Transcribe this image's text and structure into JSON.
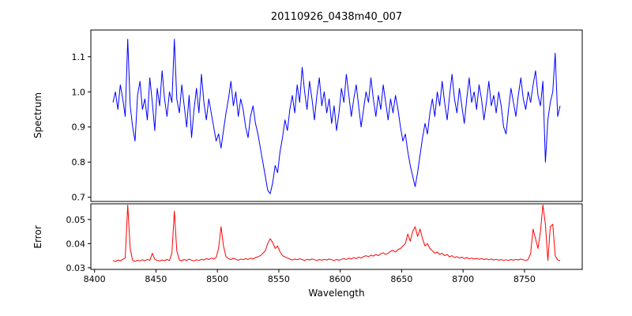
{
  "title": "20110926_0438m40_007",
  "xlabel": "Wavelength",
  "chart_data": [
    {
      "name": "spectrum",
      "type": "line",
      "ylabel": "Spectrum",
      "color": "#0000ff",
      "xlim": [
        8397,
        8797
      ],
      "ylim": [
        0.688,
        1.176
      ],
      "ytick_values": [
        0.7,
        0.8,
        0.9,
        1.0,
        1.1
      ],
      "ytick_labels": [
        "0.7",
        "0.8",
        "0.9",
        "1.0",
        "1.1"
      ],
      "x_start": 8415,
      "x_step": 2,
      "y": [
        0.97,
        1.0,
        0.95,
        1.02,
        0.98,
        0.93,
        1.15,
        0.96,
        0.9,
        0.86,
        0.99,
        1.03,
        0.95,
        0.98,
        0.92,
        1.04,
        0.97,
        0.89,
        1.01,
        0.96,
        1.06,
        0.98,
        0.93,
        1.0,
        0.97,
        1.15,
        0.98,
        0.94,
        1.02,
        0.96,
        0.9,
        0.99,
        0.87,
        0.95,
        1.01,
        0.94,
        1.05,
        0.97,
        0.92,
        0.98,
        0.94,
        0.9,
        0.86,
        0.88,
        0.84,
        0.89,
        0.94,
        0.98,
        1.03,
        0.96,
        1.0,
        0.93,
        0.98,
        0.95,
        0.9,
        0.87,
        0.93,
        0.96,
        0.91,
        0.88,
        0.84,
        0.8,
        0.76,
        0.72,
        0.71,
        0.74,
        0.79,
        0.77,
        0.83,
        0.87,
        0.92,
        0.89,
        0.95,
        0.99,
        0.94,
        1.02,
        0.97,
        1.07,
        1.0,
        0.95,
        1.03,
        0.98,
        0.92,
        0.99,
        1.04,
        0.96,
        1.0,
        0.94,
        0.98,
        0.91,
        0.96,
        0.89,
        0.94,
        1.01,
        0.97,
        1.05,
        0.99,
        0.93,
        0.98,
        1.02,
        0.96,
        0.9,
        0.95,
        1.0,
        0.97,
        1.04,
        0.98,
        0.93,
        0.99,
        0.95,
        1.02,
        0.97,
        0.92,
        0.98,
        0.94,
        0.99,
        0.95,
        0.9,
        0.86,
        0.88,
        0.83,
        0.79,
        0.76,
        0.73,
        0.77,
        0.82,
        0.87,
        0.91,
        0.88,
        0.94,
        0.98,
        0.93,
        1.0,
        0.96,
        1.03,
        0.97,
        0.92,
        0.99,
        1.05,
        0.98,
        0.94,
        1.01,
        0.96,
        0.91,
        0.98,
        1.04,
        0.97,
        1.0,
        0.95,
        1.02,
        0.98,
        0.92,
        0.97,
        1.03,
        0.96,
        0.99,
        0.94,
        1.0,
        0.96,
        0.9,
        0.88,
        0.95,
        1.01,
        0.97,
        0.93,
        0.99,
        1.04,
        0.98,
        0.95,
        1.0,
        0.97,
        1.02,
        1.06,
        0.99,
        0.96,
        1.03,
        0.8,
        0.92,
        0.97,
        1.0,
        1.11,
        0.93,
        0.96
      ]
    },
    {
      "name": "error",
      "type": "line",
      "ylabel": "Error",
      "xlabel": "Wavelength",
      "color": "#ff0000",
      "xlim": [
        8397,
        8797
      ],
      "ylim": [
        0.0293,
        0.0565
      ],
      "ytick_values": [
        0.03,
        0.04,
        0.05
      ],
      "ytick_labels": [
        "0.03",
        "0.04",
        "0.05"
      ],
      "xtick_values": [
        8400,
        8450,
        8500,
        8550,
        8600,
        8650,
        8700,
        8750
      ],
      "xtick_labels": [
        "8400",
        "8450",
        "8500",
        "8550",
        "8600",
        "8650",
        "8700",
        "8750"
      ],
      "x_start": 8415,
      "x_step": 2,
      "y": [
        0.033,
        0.0325,
        0.0332,
        0.0328,
        0.0335,
        0.034,
        0.056,
        0.038,
        0.033,
        0.0326,
        0.0331,
        0.0328,
        0.0333,
        0.0329,
        0.0335,
        0.033,
        0.036,
        0.0335,
        0.033,
        0.0328,
        0.0332,
        0.0329,
        0.0334,
        0.033,
        0.036,
        0.0535,
        0.037,
        0.0332,
        0.0329,
        0.0334,
        0.033,
        0.0336,
        0.0331,
        0.0328,
        0.0333,
        0.033,
        0.0335,
        0.0332,
        0.0338,
        0.0334,
        0.034,
        0.0336,
        0.0342,
        0.038,
        0.047,
        0.039,
        0.0345,
        0.0338,
        0.0334,
        0.0339,
        0.0335,
        0.0331,
        0.0336,
        0.0333,
        0.0338,
        0.0334,
        0.034,
        0.0336,
        0.0342,
        0.0345,
        0.035,
        0.036,
        0.037,
        0.04,
        0.042,
        0.0405,
        0.038,
        0.039,
        0.0365,
        0.035,
        0.0345,
        0.034,
        0.0336,
        0.0332,
        0.0336,
        0.0333,
        0.0337,
        0.0334,
        0.033,
        0.0335,
        0.0332,
        0.0336,
        0.0333,
        0.033,
        0.0334,
        0.0331,
        0.0335,
        0.0332,
        0.0336,
        0.0333,
        0.033,
        0.0334,
        0.0331,
        0.0335,
        0.0338,
        0.0334,
        0.034,
        0.0336,
        0.0342,
        0.0338,
        0.0344,
        0.034,
        0.0346,
        0.035,
        0.0345,
        0.0352,
        0.0348,
        0.0355,
        0.035,
        0.0358,
        0.0362,
        0.0355,
        0.036,
        0.0368,
        0.0372,
        0.0365,
        0.0375,
        0.038,
        0.039,
        0.04,
        0.044,
        0.041,
        0.045,
        0.047,
        0.043,
        0.046,
        0.042,
        0.039,
        0.04,
        0.038,
        0.037,
        0.036,
        0.0365,
        0.0355,
        0.036,
        0.035,
        0.0355,
        0.0345,
        0.035,
        0.0342,
        0.0346,
        0.034,
        0.0344,
        0.0338,
        0.0342,
        0.0337,
        0.034,
        0.0336,
        0.0339,
        0.0335,
        0.0338,
        0.0334,
        0.0337,
        0.0333,
        0.0336,
        0.0332,
        0.0335,
        0.0331,
        0.0334,
        0.033,
        0.0333,
        0.033,
        0.0334,
        0.0331,
        0.0335,
        0.0332,
        0.0336,
        0.0333,
        0.033,
        0.0334,
        0.036,
        0.046,
        0.042,
        0.038,
        0.045,
        0.056,
        0.048,
        0.033,
        0.047,
        0.048,
        0.035,
        0.0332,
        0.033
      ]
    }
  ]
}
